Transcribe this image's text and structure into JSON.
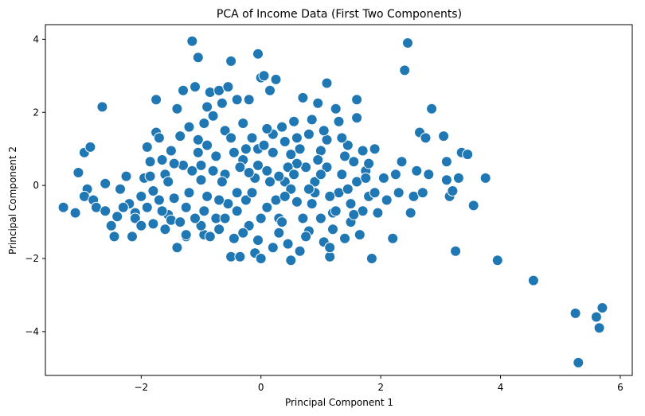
{
  "chart_data": {
    "type": "scatter",
    "title": "PCA of Income Data (First Two Components)",
    "xlabel": "Principal Component 1",
    "ylabel": "Principal Component 2",
    "xlim": [
      -3.6,
      6.2
    ],
    "ylim": [
      -5.2,
      4.4
    ],
    "xticks": [
      -2,
      0,
      2,
      4,
      6
    ],
    "yticks": [
      -4,
      -2,
      0,
      2,
      4
    ],
    "grid": false,
    "legend": "none",
    "marker_color": "#1f77b4",
    "marker_edge_color": "#ffffff",
    "series": [
      {
        "points": [
          [
            -3.3,
            -0.6
          ],
          [
            -3.1,
            -0.75
          ],
          [
            -3.05,
            0.35
          ],
          [
            -2.95,
            0.9
          ],
          [
            -2.85,
            1.05
          ],
          [
            -2.9,
            -0.1
          ],
          [
            -2.95,
            -0.3
          ],
          [
            -2.8,
            -0.4
          ],
          [
            -2.75,
            -0.6
          ],
          [
            -2.6,
            -0.7
          ],
          [
            -2.65,
            2.15
          ],
          [
            -2.6,
            0.05
          ],
          [
            -2.5,
            -1.1
          ],
          [
            -2.45,
            -1.4
          ],
          [
            -2.4,
            -0.85
          ],
          [
            -2.35,
            -0.1
          ],
          [
            -2.25,
            0.25
          ],
          [
            -2.2,
            -0.5
          ],
          [
            -2.15,
            -1.4
          ],
          [
            -2.1,
            -0.75
          ],
          [
            -2.0,
            -0.3
          ],
          [
            -1.95,
            0.2
          ],
          [
            -1.9,
            1.05
          ],
          [
            -1.85,
            0.65
          ],
          [
            -1.8,
            -0.15
          ],
          [
            -1.75,
            2.35
          ],
          [
            -1.75,
            1.45
          ],
          [
            -1.7,
            1.3
          ],
          [
            -1.65,
            0.7
          ],
          [
            -1.6,
            0.3
          ],
          [
            -1.6,
            -1.2
          ],
          [
            -1.55,
            -0.8
          ],
          [
            -1.5,
            0.95
          ],
          [
            -1.45,
            -0.35
          ],
          [
            -1.4,
            2.1
          ],
          [
            -1.4,
            -1.7
          ],
          [
            -1.35,
            1.35
          ],
          [
            -1.3,
            2.6
          ],
          [
            -1.3,
            0.55
          ],
          [
            -1.25,
            -1.4
          ],
          [
            -1.2,
            1.6
          ],
          [
            -1.15,
            3.95
          ],
          [
            -1.1,
            2.7
          ],
          [
            -1.05,
            3.5
          ],
          [
            -1.05,
            1.25
          ],
          [
            -1.0,
            0.15
          ],
          [
            -0.95,
            1.7
          ],
          [
            -0.95,
            -1.35
          ],
          [
            -0.9,
            2.15
          ],
          [
            -0.85,
            2.55
          ],
          [
            -0.8,
            1.9
          ],
          [
            -0.75,
            -0.9
          ],
          [
            -0.7,
            2.6
          ],
          [
            -0.65,
            2.25
          ],
          [
            -0.6,
            1.5
          ],
          [
            -0.55,
            2.7
          ],
          [
            -0.5,
            3.4
          ],
          [
            -0.5,
            -1.95
          ],
          [
            -0.45,
            0.9
          ],
          [
            -0.4,
            2.35
          ],
          [
            -0.35,
            -1.95
          ],
          [
            -0.3,
            1.7
          ],
          [
            -0.25,
            -0.4
          ],
          [
            -0.2,
            2.35
          ],
          [
            -0.15,
            1.3
          ],
          [
            -0.1,
            -1.85
          ],
          [
            -0.05,
            1.0
          ],
          [
            0.0,
            2.95
          ],
          [
            0.0,
            -2.0
          ],
          [
            -0.05,
            3.6
          ],
          [
            0.05,
            3.0
          ],
          [
            0.1,
            0.4
          ],
          [
            0.15,
            2.6
          ],
          [
            0.2,
            1.4
          ],
          [
            0.25,
            2.9
          ],
          [
            0.3,
            -0.9
          ],
          [
            0.35,
            1.6
          ],
          [
            0.4,
            0.1
          ],
          [
            0.45,
            -1.6
          ],
          [
            0.5,
            0.85
          ],
          [
            0.5,
            -2.05
          ],
          [
            0.55,
            1.75
          ],
          [
            0.6,
            -0.45
          ],
          [
            0.65,
            -1.8
          ],
          [
            0.7,
            2.4
          ],
          [
            0.75,
            0.5
          ],
          [
            0.8,
            -1.25
          ],
          [
            0.85,
            1.8
          ],
          [
            0.9,
            -0.2
          ],
          [
            0.95,
            2.25
          ],
          [
            1.0,
            0.95
          ],
          [
            1.05,
            -1.55
          ],
          [
            1.1,
            1.25
          ],
          [
            1.1,
            2.8
          ],
          [
            1.15,
            -1.95
          ],
          [
            1.15,
            -1.7
          ],
          [
            1.2,
            -0.75
          ],
          [
            1.25,
            2.1
          ],
          [
            1.3,
            1.75
          ],
          [
            1.35,
            0.3
          ],
          [
            1.4,
            -1.45
          ],
          [
            1.45,
            1.1
          ],
          [
            1.5,
            -0.5
          ],
          [
            1.55,
            0.65
          ],
          [
            1.6,
            2.35
          ],
          [
            1.6,
            1.85
          ],
          [
            1.65,
            -1.35
          ],
          [
            1.7,
            0.95
          ],
          [
            1.75,
            0.4
          ],
          [
            1.8,
            -0.3
          ],
          [
            1.85,
            -2.0
          ],
          [
            1.9,
            1.0
          ],
          [
            1.95,
            -0.75
          ],
          [
            2.05,
            0.2
          ],
          [
            2.1,
            -0.4
          ],
          [
            2.2,
            -1.45
          ],
          [
            2.25,
            0.3
          ],
          [
            2.3,
            -0.2
          ],
          [
            2.35,
            0.65
          ],
          [
            2.4,
            3.15
          ],
          [
            2.45,
            3.9
          ],
          [
            2.5,
            -0.75
          ],
          [
            2.55,
            -0.3
          ],
          [
            2.6,
            0.4
          ],
          [
            2.65,
            1.45
          ],
          [
            2.7,
            -0.2
          ],
          [
            2.75,
            1.3
          ],
          [
            2.8,
            0.3
          ],
          [
            2.85,
            2.1
          ],
          [
            3.05,
            1.35
          ],
          [
            3.1,
            0.65
          ],
          [
            3.1,
            0.15
          ],
          [
            3.15,
            -0.3
          ],
          [
            3.2,
            -0.15
          ],
          [
            3.25,
            -1.8
          ],
          [
            3.3,
            0.2
          ],
          [
            3.35,
            0.9
          ],
          [
            3.45,
            0.85
          ],
          [
            3.55,
            -0.55
          ],
          [
            3.75,
            0.2
          ],
          [
            3.95,
            -2.05
          ],
          [
            4.55,
            -2.6
          ],
          [
            5.25,
            -3.5
          ],
          [
            5.3,
            -4.85
          ],
          [
            5.6,
            -3.6
          ],
          [
            5.65,
            -3.9
          ],
          [
            5.7,
            -3.35
          ],
          [
            -1.8,
            -1.05
          ],
          [
            -1.5,
            -0.95
          ],
          [
            -1.25,
            -0.6
          ],
          [
            -1.0,
            -1.1
          ],
          [
            -0.9,
            -0.3
          ],
          [
            -0.7,
            -1.2
          ],
          [
            -0.6,
            0.3
          ],
          [
            -0.4,
            -0.7
          ],
          [
            -0.3,
            0.7
          ],
          [
            -0.2,
            -1.1
          ],
          [
            -0.1,
            0.2
          ],
          [
            0.1,
            -0.6
          ],
          [
            0.2,
            0.9
          ],
          [
            0.3,
            -1.3
          ],
          [
            0.4,
            1.2
          ],
          [
            0.5,
            -0.1
          ],
          [
            0.6,
            0.6
          ],
          [
            0.7,
            -0.9
          ],
          [
            0.8,
            1.4
          ],
          [
            0.9,
            0.1
          ],
          [
            1.0,
            -0.9
          ],
          [
            1.1,
            0.5
          ],
          [
            1.2,
            -1.2
          ],
          [
            1.3,
            -0.2
          ],
          [
            1.4,
            0.8
          ],
          [
            1.5,
            -1.0
          ],
          [
            1.6,
            0.1
          ],
          [
            1.7,
            -0.7
          ],
          [
            1.8,
            0.6
          ],
          [
            1.9,
            -0.2
          ],
          [
            -2.3,
            -0.6
          ],
          [
            -2.1,
            -0.9
          ],
          [
            -1.9,
            -0.6
          ],
          [
            -1.7,
            -0.4
          ],
          [
            -1.55,
            0.1
          ],
          [
            -1.35,
            -1.0
          ],
          [
            -1.15,
            0.4
          ],
          [
            -0.95,
            -0.7
          ],
          [
            -0.75,
            0.8
          ],
          [
            -0.55,
            -0.5
          ],
          [
            -0.35,
            0.5
          ],
          [
            -0.15,
            -0.2
          ],
          [
            0.05,
            1.1
          ],
          [
            0.25,
            -0.4
          ],
          [
            0.45,
            0.5
          ],
          [
            0.65,
            1.0
          ],
          [
            0.85,
            -0.5
          ],
          [
            1.05,
            1.5
          ],
          [
            1.25,
            -0.7
          ],
          [
            1.45,
            -0.1
          ],
          [
            -1.65,
            -0.7
          ],
          [
            -1.45,
            0.6
          ],
          [
            -1.25,
            -1.35
          ],
          [
            -1.05,
            0.9
          ],
          [
            -0.85,
            -1.4
          ],
          [
            -0.65,
            0.1
          ],
          [
            -0.45,
            -1.45
          ],
          [
            -0.25,
            1.0
          ],
          [
            -0.05,
            -1.5
          ],
          [
            0.15,
            0.1
          ],
          [
            0.35,
            -1.0
          ],
          [
            0.55,
            0.3
          ],
          [
            0.75,
            -1.4
          ],
          [
            0.95,
            0.7
          ],
          [
            1.15,
            -0.3
          ],
          [
            1.35,
            1.3
          ],
          [
            1.55,
            -0.8
          ],
          [
            1.75,
            0.2
          ],
          [
            -2.0,
            -1.1
          ],
          [
            -1.85,
            0.25
          ],
          [
            -0.05,
            0.55
          ],
          [
            0.0,
            -0.9
          ],
          [
            0.1,
            1.55
          ],
          [
            0.3,
            0.25
          ],
          [
            -0.2,
            0.35
          ],
          [
            -0.4,
            -0.2
          ],
          [
            -0.6,
            -0.9
          ],
          [
            -0.8,
            0.4
          ],
          [
            -1.0,
            0.55
          ],
          [
            -1.2,
            -0.2
          ],
          [
            0.2,
            -1.7
          ],
          [
            0.4,
            -0.3
          ],
          [
            0.6,
            1.3
          ],
          [
            0.8,
            -0.1
          ],
          [
            1.0,
            0.3
          ],
          [
            -0.3,
            -1.3
          ],
          [
            -0.5,
            1.3
          ],
          [
            -0.7,
            -0.4
          ],
          [
            -0.9,
            1.1
          ],
          [
            -1.1,
            -0.9
          ]
        ]
      }
    ]
  }
}
